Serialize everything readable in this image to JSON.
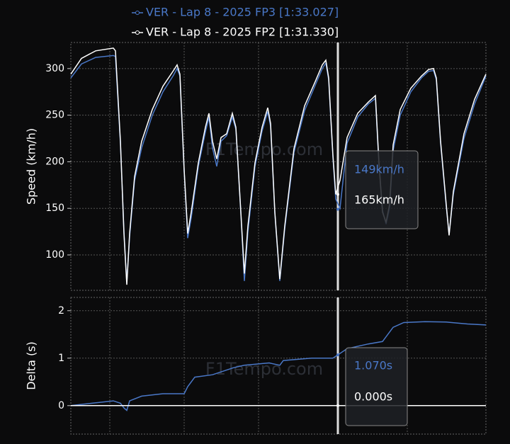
{
  "chart_data": [
    {
      "type": "line",
      "y_label": "Speed (km/h)",
      "watermark": "F1Tempo.com",
      "ylim": [
        62,
        328
      ],
      "yticks": [
        100,
        150,
        200,
        250,
        300
      ],
      "xlim": [
        0,
        586
      ],
      "grid": true,
      "legend": "top",
      "cursor_x": 377,
      "tooltip": [
        {
          "value": 149,
          "label": "149km/h",
          "color": "#4a78c8"
        },
        {
          "value": 165,
          "label": "165km/h",
          "color": "#ffffff"
        }
      ],
      "series": [
        {
          "name": "VER - Lap 8 - 2025 FP3 [1:33.027]",
          "color": "#4a78c8",
          "x": [
            0,
            15,
            35,
            60,
            63,
            70,
            75,
            79,
            83,
            90,
            100,
            115,
            130,
            145,
            150,
            154,
            160,
            165,
            170,
            180,
            190,
            195,
            200,
            206,
            212,
            220,
            228,
            233,
            240,
            245,
            250,
            260,
            270,
            278,
            282,
            288,
            295,
            302,
            315,
            330,
            345,
            355,
            360,
            364,
            370,
            374,
            380,
            390,
            405,
            420,
            430,
            435,
            440,
            445,
            450,
            455,
            465,
            480,
            495,
            505,
            512,
            516,
            522,
            530,
            534,
            540,
            555,
            570,
            586
          ],
          "values": [
            290,
            305,
            312,
            314,
            313,
            220,
            125,
            70,
            120,
            180,
            215,
            250,
            275,
            293,
            300,
            292,
            190,
            118,
            140,
            195,
            232,
            248,
            215,
            195,
            222,
            228,
            248,
            235,
            145,
            72,
            125,
            195,
            233,
            254,
            238,
            145,
            72,
            128,
            210,
            255,
            282,
            300,
            306,
            288,
            205,
            160,
            150,
            220,
            248,
            262,
            268,
            197,
            148,
            133,
            150,
            212,
            250,
            275,
            290,
            297,
            298,
            288,
            220,
            152,
            122,
            165,
            225,
            262,
            292
          ]
        },
        {
          "name": "VER - Lap 8 - 2025 FP2 [1:31.330]",
          "color": "#ffffff",
          "x": [
            0,
            15,
            35,
            60,
            63,
            70,
            75,
            79,
            83,
            90,
            100,
            115,
            130,
            145,
            150,
            154,
            160,
            165,
            170,
            180,
            190,
            195,
            200,
            206,
            212,
            220,
            228,
            233,
            240,
            245,
            250,
            260,
            270,
            278,
            282,
            288,
            295,
            302,
            315,
            330,
            345,
            355,
            360,
            364,
            370,
            374,
            380,
            390,
            405,
            420,
            430,
            435,
            440,
            445,
            450,
            455,
            465,
            480,
            495,
            505,
            512,
            516,
            522,
            530,
            534,
            540,
            555,
            570,
            586
          ],
          "values": [
            294,
            311,
            319,
            322,
            319,
            222,
            123,
            68,
            123,
            184,
            222,
            256,
            281,
            298,
            304,
            294,
            191,
            123,
            146,
            199,
            237,
            252,
            222,
            203,
            226,
            230,
            252,
            237,
            146,
            80,
            131,
            199,
            237,
            258,
            241,
            146,
            74,
            131,
            214,
            260,
            286,
            304,
            309,
            290,
            207,
            165,
            180,
            226,
            252,
            264,
            271,
            199,
            146,
            135,
            154,
            218,
            256,
            279,
            292,
            299,
            300,
            290,
            222,
            154,
            121,
            168,
            230,
            267,
            294
          ]
        }
      ]
    },
    {
      "type": "line",
      "y_label": "Delta (s)",
      "watermark": "F1Tempo.com",
      "ylim": [
        -0.6,
        2.28
      ],
      "yticks": [
        0,
        1,
        2
      ],
      "xlim": [
        0,
        586
      ],
      "grid": true,
      "cursor_x": 377,
      "tooltip": [
        {
          "value": 1.07,
          "label": "1.070s",
          "color": "#4a78c8"
        },
        {
          "value": 0,
          "label": "0.000s",
          "color": "#ffffff"
        }
      ],
      "series": [
        {
          "color": "#4a78c8",
          "x": [
            0,
            30,
            60,
            70,
            75,
            79,
            83,
            100,
            130,
            160,
            165,
            175,
            200,
            230,
            245,
            280,
            295,
            300,
            340,
            370,
            377,
            390,
            420,
            440,
            455,
            470,
            500,
            530,
            560,
            586
          ],
          "values": [
            0,
            0.05,
            0.1,
            0.05,
            -0.05,
            -0.1,
            0.1,
            0.2,
            0.25,
            0.25,
            0.4,
            0.6,
            0.65,
            0.8,
            0.85,
            0.9,
            0.85,
            0.95,
            1.0,
            1.0,
            1.07,
            1.2,
            1.3,
            1.35,
            1.65,
            1.75,
            1.77,
            1.76,
            1.72,
            1.7
          ]
        },
        {
          "color": "#ffffff",
          "x": [
            0,
            586
          ],
          "values": [
            0,
            0
          ]
        }
      ]
    }
  ]
}
